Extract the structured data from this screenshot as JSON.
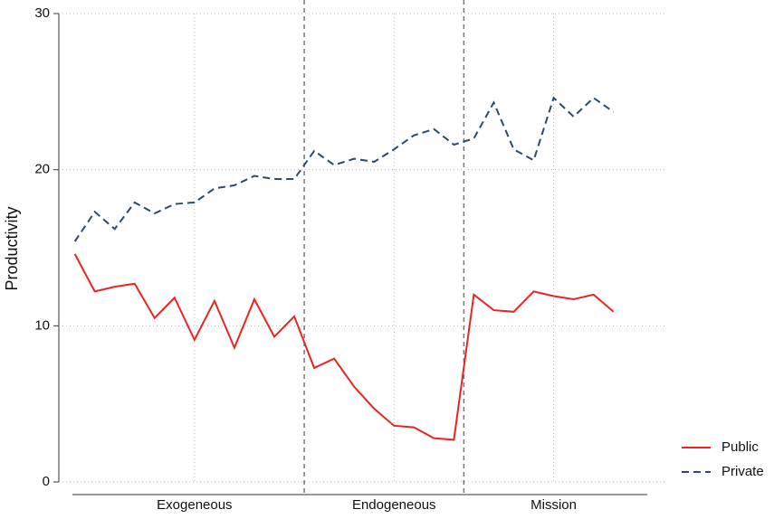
{
  "chart_data": {
    "type": "line",
    "y_label": "Productivity",
    "x": [
      1,
      2,
      3,
      4,
      5,
      6,
      7,
      8,
      9,
      10,
      11,
      12,
      13,
      14,
      15,
      16,
      17,
      18,
      19,
      20,
      21,
      22,
      23,
      24,
      25,
      26,
      27,
      28
    ],
    "series": [
      {
        "name": "Public",
        "color": "#ee2222",
        "dash": "solid",
        "values": [
          14.6,
          12.2,
          12.5,
          12.7,
          10.5,
          11.8,
          9.1,
          11.6,
          8.6,
          11.7,
          9.3,
          10.6,
          7.3,
          7.9,
          6.1,
          4.7,
          3.6,
          3.5,
          2.8,
          2.7,
          12.0,
          11.0,
          10.9,
          12.2,
          11.9,
          11.7,
          12.0,
          10.9
        ]
      },
      {
        "name": "Private",
        "color": "#2c4a6b",
        "dash": "dashed",
        "values": [
          15.4,
          17.3,
          16.2,
          17.9,
          17.2,
          17.8,
          17.9,
          18.8,
          19.0,
          19.6,
          19.4,
          19.4,
          21.2,
          20.3,
          20.7,
          20.5,
          21.3,
          22.2,
          22.6,
          21.6,
          22.0,
          24.3,
          21.3,
          20.6,
          24.6,
          23.4,
          24.6,
          23.7
        ]
      }
    ],
    "xlim": [
      0.2,
      30.6
    ],
    "xticks": [
      {
        "value": 7,
        "label": "Exogeneous"
      },
      {
        "value": 17,
        "label": "Endogeneous"
      },
      {
        "value": 25,
        "label": "Mission"
      }
    ],
    "dividers": [
      12.5,
      20.5
    ],
    "ylim": [
      0,
      30
    ],
    "yticks": [
      0,
      10,
      20,
      30
    ],
    "grid": true,
    "legend": "bottom-right"
  }
}
